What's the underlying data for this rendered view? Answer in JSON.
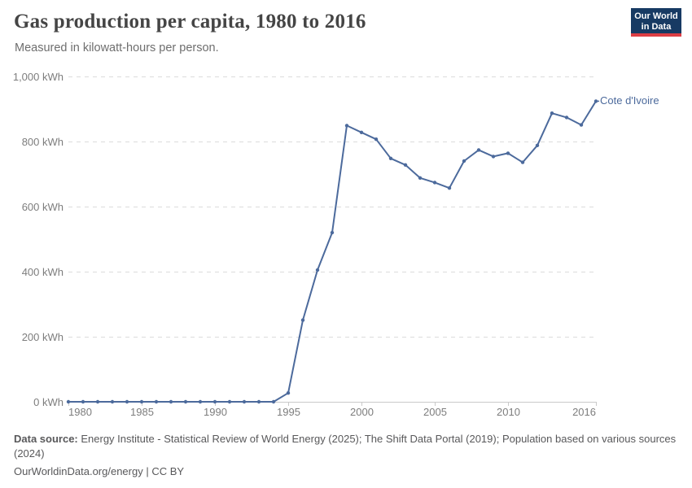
{
  "header": {
    "logo": {
      "line1": "Our World",
      "line2": "in Data"
    }
  },
  "colors": {
    "line": "#4c6a9c",
    "logo_bg": "#173a63",
    "logo_bar": "#dc3e44",
    "grid": "#dcdcdc",
    "axis": "#c9c9c9",
    "axis_text": "#7d7d7d"
  },
  "chart_data": {
    "type": "line",
    "title": "Gas production per capita, 1980 to 2016",
    "subtitle": "Measured in kilowatt-hours per person.",
    "xlabel": "",
    "ylabel": "kWh",
    "xlim": [
      1980,
      2016
    ],
    "ylim": [
      0,
      1000
    ],
    "grid": "horizontal-dashed",
    "legend_position": "end-of-line-label",
    "x": [
      1980,
      1981,
      1982,
      1983,
      1984,
      1985,
      1986,
      1987,
      1988,
      1989,
      1990,
      1991,
      1992,
      1993,
      1994,
      1995,
      1996,
      1997,
      1998,
      1999,
      2000,
      2001,
      2002,
      2003,
      2004,
      2005,
      2006,
      2007,
      2008,
      2009,
      2010,
      2011,
      2012,
      2013,
      2014,
      2015,
      2016
    ],
    "series": [
      {
        "name": "Cote d'Ivoire",
        "color": "#4c6a9c",
        "values": [
          0,
          0,
          0,
          0,
          0,
          0,
          0,
          0,
          0,
          0,
          0,
          0,
          0,
          0,
          0,
          27,
          251,
          405,
          520,
          849,
          828,
          807,
          748,
          728,
          688,
          674,
          657,
          740,
          774,
          754,
          764,
          736,
          788,
          887,
          874,
          851,
          924
        ]
      }
    ],
    "x_ticks": [
      1980,
      1985,
      1990,
      1995,
      2000,
      2005,
      2010,
      2016
    ],
    "x_tick_labels": [
      "1980",
      "1985",
      "1990",
      "1995",
      "2000",
      "2005",
      "2010",
      "2016"
    ],
    "y_ticks": [
      0,
      200,
      400,
      600,
      800,
      1000
    ],
    "y_tick_labels": [
      "0 kWh",
      "200 kWh",
      "400 kWh",
      "600 kWh",
      "800 kWh",
      "1,000 kWh"
    ]
  },
  "footer": {
    "data_source_label": "Data source:",
    "data_source_text": " Energy Institute - Statistical Review of World Energy (2025); The Shift Data Portal (2019); Population based on various sources (2024)",
    "license_line": "OurWorldinData.org/energy | CC BY"
  }
}
